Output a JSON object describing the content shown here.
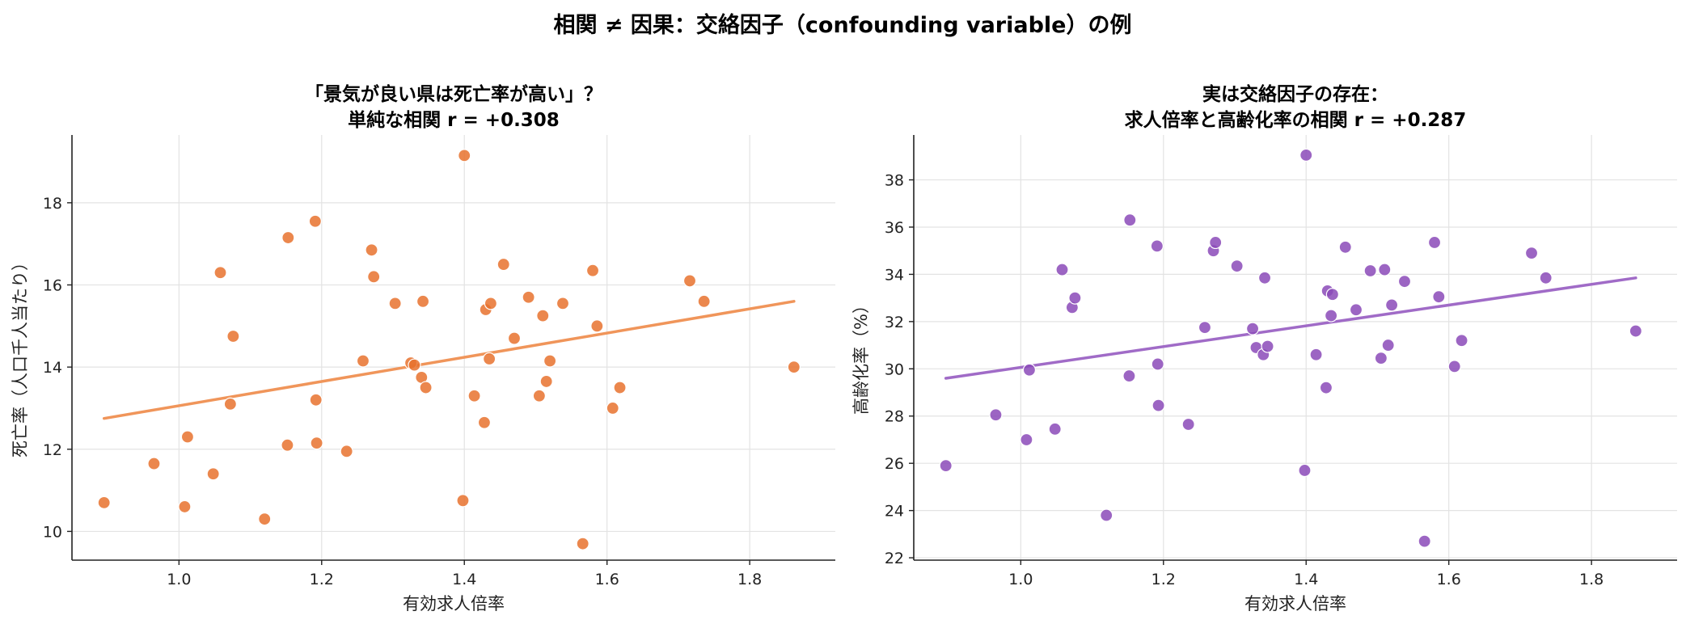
{
  "figure": {
    "title": "相関 ≠ 因果：交絡因子（confounding variable）の例"
  },
  "chart_data": [
    {
      "type": "scatter",
      "title_lines": [
        "「景気が良い県は死亡率が高い」？",
        "単純な相関 r = +0.308"
      ],
      "xlabel": "有効求人倍率",
      "ylabel": "死亡率（人口千人当たり）",
      "xlim": [
        0.85,
        1.92
      ],
      "ylim": [
        9.3,
        19.65
      ],
      "xticks": [
        1.0,
        1.2,
        1.4,
        1.6,
        1.8
      ],
      "xtick_labels": [
        "1.0",
        "1.2",
        "1.4",
        "1.6",
        "1.8"
      ],
      "yticks": [
        10,
        12,
        14,
        16,
        18
      ],
      "ytick_labels": [
        "10",
        "12",
        "14",
        "16",
        "18"
      ],
      "grid": true,
      "point_color": "#e8722e",
      "line_color": "#f0955a",
      "trend_line": {
        "x": [
          0.895,
          1.862
        ],
        "y": [
          12.75,
          15.6
        ]
      },
      "x": [
        0.895,
        0.965,
        1.008,
        1.012,
        1.048,
        1.058,
        1.072,
        1.076,
        1.12,
        1.152,
        1.153,
        1.191,
        1.192,
        1.193,
        1.235,
        1.258,
        1.27,
        1.273,
        1.303,
        1.325,
        1.33,
        1.34,
        1.342,
        1.346,
        1.398,
        1.4,
        1.414,
        1.428,
        1.43,
        1.435,
        1.437,
        1.455,
        1.47,
        1.49,
        1.505,
        1.51,
        1.515,
        1.52,
        1.538,
        1.566,
        1.58,
        1.586,
        1.608,
        1.618,
        1.716,
        1.736,
        1.862
      ],
      "y": [
        10.7,
        11.65,
        10.6,
        12.3,
        11.4,
        16.3,
        13.1,
        14.75,
        10.3,
        12.1,
        17.15,
        17.55,
        13.2,
        12.15,
        11.95,
        14.15,
        16.85,
        16.2,
        15.55,
        14.1,
        14.05,
        13.75,
        15.6,
        13.5,
        10.75,
        19.15,
        13.3,
        12.65,
        15.4,
        14.2,
        15.55,
        16.5,
        14.7,
        15.7,
        13.3,
        15.25,
        13.65,
        14.15,
        15.55,
        9.7,
        16.35,
        15,
        13,
        13.5,
        16.1,
        15.6,
        14
      ]
    },
    {
      "type": "scatter",
      "title_lines": [
        "実は交絡因子の存在：",
        "求人倍率と高齢化率の相関 r = +0.287"
      ],
      "xlabel": "有効求人倍率",
      "ylabel": "高齢化率（%）",
      "xlim": [
        0.85,
        1.92
      ],
      "ylim": [
        21.9,
        39.9
      ],
      "xticks": [
        1.0,
        1.2,
        1.4,
        1.6,
        1.8
      ],
      "xtick_labels": [
        "1.0",
        "1.2",
        "1.4",
        "1.6",
        "1.8"
      ],
      "yticks": [
        22,
        24,
        26,
        28,
        30,
        32,
        34,
        36,
        38
      ],
      "ytick_labels": [
        "22",
        "24",
        "26",
        "28",
        "30",
        "32",
        "34",
        "36",
        "38"
      ],
      "grid": true,
      "point_color": "#8b4ab8",
      "line_color": "#a06bc7",
      "trend_line": {
        "x": [
          0.895,
          1.862
        ],
        "y": [
          29.6,
          33.85
        ]
      },
      "x": [
        0.895,
        0.965,
        1.008,
        1.012,
        1.048,
        1.058,
        1.072,
        1.076,
        1.12,
        1.152,
        1.153,
        1.191,
        1.192,
        1.193,
        1.235,
        1.258,
        1.27,
        1.273,
        1.303,
        1.325,
        1.33,
        1.34,
        1.342,
        1.346,
        1.398,
        1.4,
        1.414,
        1.428,
        1.43,
        1.435,
        1.437,
        1.455,
        1.47,
        1.49,
        1.505,
        1.51,
        1.515,
        1.52,
        1.538,
        1.566,
        1.58,
        1.586,
        1.608,
        1.618,
        1.716,
        1.736,
        1.862
      ],
      "y": [
        25.9,
        28.05,
        27,
        29.95,
        27.45,
        34.2,
        32.6,
        33,
        23.8,
        29.7,
        36.3,
        35.2,
        30.2,
        28.45,
        27.65,
        31.75,
        35,
        35.35,
        34.35,
        31.7,
        30.9,
        30.6,
        33.85,
        30.95,
        25.7,
        39.05,
        30.6,
        29.2,
        33.3,
        32.25,
        33.15,
        35.15,
        32.5,
        34.15,
        30.45,
        34.2,
        31,
        32.7,
        33.7,
        22.7,
        35.35,
        33.05,
        30.1,
        31.2,
        34.9,
        33.85,
        31.6
      ]
    }
  ]
}
